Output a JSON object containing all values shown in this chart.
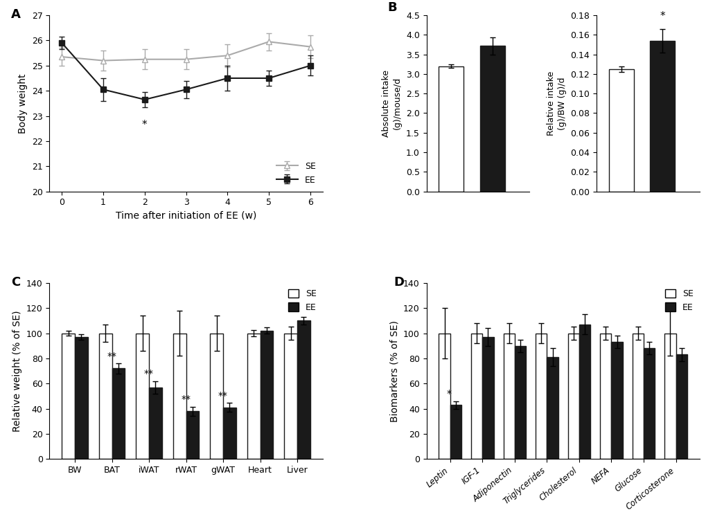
{
  "panel_A": {
    "xlabel": "Time after initiation of EE (w)",
    "ylabel": "Body weight",
    "xlim": [
      -0.3,
      6.3
    ],
    "ylim": [
      20,
      27
    ],
    "yticks": [
      20,
      21,
      22,
      23,
      24,
      25,
      26,
      27
    ],
    "xticks": [
      0,
      1,
      2,
      3,
      4,
      5,
      6
    ],
    "SE_x": [
      0,
      1,
      2,
      3,
      4,
      5,
      6
    ],
    "SE_y": [
      25.35,
      25.2,
      25.25,
      25.25,
      25.4,
      25.95,
      25.75
    ],
    "SE_err": [
      0.35,
      0.4,
      0.4,
      0.4,
      0.45,
      0.35,
      0.45
    ],
    "EE_x": [
      0,
      1,
      2,
      3,
      4,
      5,
      6
    ],
    "EE_y": [
      25.9,
      24.05,
      23.65,
      24.05,
      24.5,
      24.5,
      25.0
    ],
    "EE_err": [
      0.25,
      0.45,
      0.3,
      0.35,
      0.5,
      0.3,
      0.4
    ],
    "star_x": 2,
    "star_y": 23.2,
    "SE_color": "#aaaaaa",
    "EE_color": "#1a1a1a",
    "legend_SE": "SE",
    "legend_EE": "EE"
  },
  "panel_B_abs": {
    "ylabel": "Absolute intake\n(g)/mouse/d",
    "ylim": [
      0,
      4.5
    ],
    "yticks": [
      0,
      0.5,
      1.0,
      1.5,
      2.0,
      2.5,
      3.0,
      3.5,
      4.0,
      4.5
    ],
    "SE_val": 3.2,
    "SE_err": 0.05,
    "EE_val": 3.72,
    "EE_err": 0.22,
    "SE_color": "#ffffff",
    "EE_color": "#1a1a1a",
    "bar_edge": "#1a1a1a"
  },
  "panel_B_rel": {
    "ylabel": "Relative intake\n(g)/BW (g)/d",
    "ylim": [
      0,
      0.18
    ],
    "yticks": [
      0,
      0.02,
      0.04,
      0.06,
      0.08,
      0.1,
      0.12,
      0.14,
      0.16,
      0.18
    ],
    "SE_val": 0.125,
    "SE_err": 0.003,
    "EE_val": 0.154,
    "EE_err": 0.012,
    "SE_color": "#ffffff",
    "EE_color": "#1a1a1a",
    "bar_edge": "#1a1a1a",
    "star_text": "*"
  },
  "panel_C": {
    "ylabel": "Relative weight (% of SE)",
    "ylim": [
      0,
      140
    ],
    "yticks": [
      0,
      20,
      40,
      60,
      80,
      100,
      120,
      140
    ],
    "categories": [
      "BW",
      "BAT",
      "iWAT",
      "rWAT",
      "gWAT",
      "Heart",
      "Liver"
    ],
    "SE_vals": [
      100,
      100,
      100,
      100,
      100,
      100,
      100
    ],
    "SE_errs": [
      2.0,
      7.0,
      14.0,
      18.0,
      14.0,
      2.5,
      5.0
    ],
    "EE_vals": [
      97,
      72,
      57,
      38,
      41,
      102,
      110
    ],
    "EE_errs": [
      2.0,
      4.0,
      5.0,
      3.5,
      3.5,
      2.5,
      3.0
    ],
    "sig_labels": [
      "",
      "**",
      "**",
      "**",
      "**",
      "",
      ""
    ],
    "SE_color": "#ffffff",
    "EE_color": "#1a1a1a",
    "bar_edge": "#1a1a1a"
  },
  "panel_D": {
    "ylabel": "Biomarkers (% of SE)",
    "ylim": [
      0,
      140
    ],
    "yticks": [
      0,
      20,
      40,
      60,
      80,
      100,
      120,
      140
    ],
    "categories": [
      "Leptin",
      "IGF-1",
      "Adiponectin",
      "Triglycerides",
      "Cholesterol",
      "NEFA",
      "Glucose",
      "Corticosterone"
    ],
    "SE_vals": [
      100,
      100,
      100,
      100,
      100,
      100,
      100,
      100
    ],
    "SE_errs": [
      20,
      8,
      8,
      8,
      5,
      5,
      5,
      18
    ],
    "EE_vals": [
      43,
      97,
      90,
      81,
      107,
      93,
      88,
      83
    ],
    "EE_errs": [
      3,
      7,
      5,
      7,
      8,
      5,
      5,
      5
    ],
    "sig_labels": [
      "*",
      "",
      "",
      "",
      "",
      "",
      "",
      ""
    ],
    "SE_color": "#ffffff",
    "EE_color": "#1a1a1a",
    "bar_edge": "#1a1a1a"
  },
  "background_color": "#ffffff",
  "font_size": 9
}
